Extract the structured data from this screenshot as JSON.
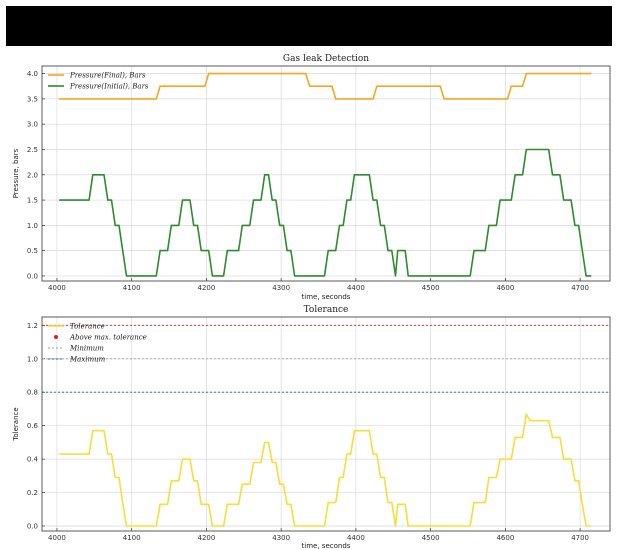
{
  "colors": {
    "final": "#f5a623",
    "initial": "#2e8b2e",
    "tolerance": "#f7dd3a",
    "above": "#e02020",
    "minimum": "#9c9c9c",
    "maximum": "#3355aa"
  },
  "chart_data": [
    {
      "type": "line",
      "title": "Gas leak Detection",
      "xlabel": "time, seconds",
      "ylabel": "Pressure, bars",
      "xlim": [
        3980,
        4740
      ],
      "ylim": [
        -0.1,
        4.15
      ],
      "xticks": [
        "4000",
        "4100",
        "4200",
        "4300",
        "4400",
        "4500",
        "4600",
        "4700"
      ],
      "yticks": [
        "0.0",
        "0.5",
        "1.0",
        "1.5",
        "2.0",
        "2.5",
        "3.0",
        "3.5",
        "4.0"
      ],
      "grid": true,
      "legend_position": "top-left",
      "series": [
        {
          "name": "Pressure(Final), Bars",
          "color_key": "final",
          "points": [
            [
              4003,
              3.5
            ],
            [
              4133,
              3.5
            ],
            [
              4138,
              3.75
            ],
            [
              4198,
              3.75
            ],
            [
              4203,
              4.0
            ],
            [
              4333,
              4.0
            ],
            [
              4338,
              3.75
            ],
            [
              4368,
              3.75
            ],
            [
              4373,
              3.5
            ],
            [
              4423,
              3.5
            ],
            [
              4428,
              3.75
            ],
            [
              4513,
              3.75
            ],
            [
              4518,
              3.5
            ],
            [
              4603,
              3.5
            ],
            [
              4608,
              3.75
            ],
            [
              4623,
              3.75
            ],
            [
              4628,
              4.0
            ],
            [
              4715,
              4.0
            ]
          ]
        },
        {
          "name": "Pressure(Initial), Bars",
          "color_key": "initial",
          "points": [
            [
              4003,
              1.5
            ],
            [
              4043,
              1.5
            ],
            [
              4048,
              2.0
            ],
            [
              4063,
              2.0
            ],
            [
              4068,
              1.5
            ],
            [
              4073,
              1.5
            ],
            [
              4078,
              1.0
            ],
            [
              4083,
              1.0
            ],
            [
              4088,
              0.5
            ],
            [
              4093,
              0.0
            ],
            [
              4133,
              0.0
            ],
            [
              4138,
              0.5
            ],
            [
              4148,
              0.5
            ],
            [
              4153,
              1.0
            ],
            [
              4163,
              1.0
            ],
            [
              4168,
              1.5
            ],
            [
              4178,
              1.5
            ],
            [
              4183,
              1.0
            ],
            [
              4188,
              1.0
            ],
            [
              4193,
              0.5
            ],
            [
              4203,
              0.5
            ],
            [
              4208,
              0.0
            ],
            [
              4223,
              0.0
            ],
            [
              4228,
              0.5
            ],
            [
              4243,
              0.5
            ],
            [
              4248,
              1.0
            ],
            [
              4258,
              1.0
            ],
            [
              4263,
              1.5
            ],
            [
              4273,
              1.5
            ],
            [
              4278,
              2.0
            ],
            [
              4283,
              2.0
            ],
            [
              4288,
              1.5
            ],
            [
              4293,
              1.5
            ],
            [
              4298,
              1.0
            ],
            [
              4303,
              1.0
            ],
            [
              4308,
              0.5
            ],
            [
              4313,
              0.5
            ],
            [
              4318,
              0.0
            ],
            [
              4358,
              0.0
            ],
            [
              4363,
              0.5
            ],
            [
              4373,
              0.5
            ],
            [
              4378,
              1.0
            ],
            [
              4383,
              1.0
            ],
            [
              4388,
              1.5
            ],
            [
              4393,
              1.5
            ],
            [
              4398,
              2.0
            ],
            [
              4418,
              2.0
            ],
            [
              4423,
              1.5
            ],
            [
              4428,
              1.5
            ],
            [
              4433,
              1.0
            ],
            [
              4438,
              1.0
            ],
            [
              4443,
              0.5
            ],
            [
              4448,
              0.5
            ],
            [
              4453,
              0.0
            ],
            [
              4456,
              0.5
            ],
            [
              4466,
              0.5
            ],
            [
              4470,
              0.0
            ],
            [
              4553,
              0.0
            ],
            [
              4558,
              0.5
            ],
            [
              4573,
              0.5
            ],
            [
              4578,
              1.0
            ],
            [
              4588,
              1.0
            ],
            [
              4593,
              1.5
            ],
            [
              4608,
              1.5
            ],
            [
              4613,
              2.0
            ],
            [
              4623,
              2.0
            ],
            [
              4628,
              2.5
            ],
            [
              4658,
              2.5
            ],
            [
              4663,
              2.0
            ],
            [
              4673,
              2.0
            ],
            [
              4678,
              1.5
            ],
            [
              4688,
              1.5
            ],
            [
              4693,
              1.0
            ],
            [
              4698,
              1.0
            ],
            [
              4703,
              0.5
            ],
            [
              4708,
              0.0
            ],
            [
              4715,
              0.0
            ]
          ]
        }
      ]
    },
    {
      "type": "line",
      "title": "Tolerance",
      "xlabel": "time, seconds",
      "ylabel": "Tolerance",
      "xlim": [
        3980,
        4740
      ],
      "ylim": [
        -0.03,
        1.25
      ],
      "xticks": [
        "4000",
        "4100",
        "4200",
        "4300",
        "4400",
        "4500",
        "4600",
        "4700"
      ],
      "yticks": [
        "0.0",
        "0.2",
        "0.4",
        "0.6",
        "0.8",
        "1.0",
        "1.2"
      ],
      "grid": true,
      "legend_position": "top-left",
      "hlines": [
        {
          "y": 1.2,
          "color_key": "above"
        },
        {
          "y": 1.0,
          "color_key": "minimum"
        },
        {
          "y": 0.8,
          "color_key": "maximum"
        }
      ],
      "legend": [
        {
          "label": "Tolerance",
          "color_key": "tolerance",
          "marker": "line"
        },
        {
          "label": "Above max. tolerance",
          "color_key": "above",
          "marker": "dot"
        },
        {
          "label": "Minimum",
          "color_key": "minimum",
          "marker": "dash"
        },
        {
          "label": "Maximum",
          "color_key": "maximum",
          "marker": "dash"
        }
      ],
      "series": [
        {
          "color_key": "tolerance",
          "points": [
            [
              4003,
              0.43
            ],
            [
              4043,
              0.43
            ],
            [
              4048,
              0.57
            ],
            [
              4063,
              0.57
            ],
            [
              4068,
              0.43
            ],
            [
              4073,
              0.43
            ],
            [
              4078,
              0.29
            ],
            [
              4083,
              0.29
            ],
            [
              4088,
              0.14
            ],
            [
              4093,
              0.0
            ],
            [
              4133,
              0.0
            ],
            [
              4138,
              0.13
            ],
            [
              4148,
              0.13
            ],
            [
              4153,
              0.27
            ],
            [
              4163,
              0.27
            ],
            [
              4168,
              0.4
            ],
            [
              4178,
              0.4
            ],
            [
              4183,
              0.27
            ],
            [
              4188,
              0.27
            ],
            [
              4193,
              0.13
            ],
            [
              4203,
              0.13
            ],
            [
              4208,
              0.0
            ],
            [
              4223,
              0.0
            ],
            [
              4228,
              0.13
            ],
            [
              4243,
              0.13
            ],
            [
              4248,
              0.25
            ],
            [
              4258,
              0.25
            ],
            [
              4263,
              0.38
            ],
            [
              4273,
              0.38
            ],
            [
              4278,
              0.5
            ],
            [
              4283,
              0.5
            ],
            [
              4288,
              0.38
            ],
            [
              4293,
              0.38
            ],
            [
              4298,
              0.25
            ],
            [
              4303,
              0.25
            ],
            [
              4308,
              0.13
            ],
            [
              4313,
              0.13
            ],
            [
              4318,
              0.0
            ],
            [
              4358,
              0.0
            ],
            [
              4363,
              0.14
            ],
            [
              4373,
              0.14
            ],
            [
              4378,
              0.29
            ],
            [
              4383,
              0.29
            ],
            [
              4388,
              0.43
            ],
            [
              4393,
              0.43
            ],
            [
              4398,
              0.57
            ],
            [
              4418,
              0.57
            ],
            [
              4423,
              0.43
            ],
            [
              4428,
              0.43
            ],
            [
              4433,
              0.29
            ],
            [
              4438,
              0.29
            ],
            [
              4443,
              0.14
            ],
            [
              4448,
              0.14
            ],
            [
              4453,
              0.0
            ],
            [
              4456,
              0.13
            ],
            [
              4466,
              0.13
            ],
            [
              4470,
              0.0
            ],
            [
              4553,
              0.0
            ],
            [
              4558,
              0.14
            ],
            [
              4573,
              0.14
            ],
            [
              4578,
              0.29
            ],
            [
              4588,
              0.29
            ],
            [
              4593,
              0.4
            ],
            [
              4608,
              0.4
            ],
            [
              4613,
              0.53
            ],
            [
              4623,
              0.53
            ],
            [
              4628,
              0.67
            ],
            [
              4633,
              0.63
            ],
            [
              4658,
              0.63
            ],
            [
              4663,
              0.53
            ],
            [
              4673,
              0.53
            ],
            [
              4678,
              0.4
            ],
            [
              4688,
              0.4
            ],
            [
              4693,
              0.27
            ],
            [
              4698,
              0.27
            ],
            [
              4703,
              0.13
            ],
            [
              4708,
              0.0
            ],
            [
              4715,
              0.0
            ]
          ]
        }
      ]
    }
  ]
}
